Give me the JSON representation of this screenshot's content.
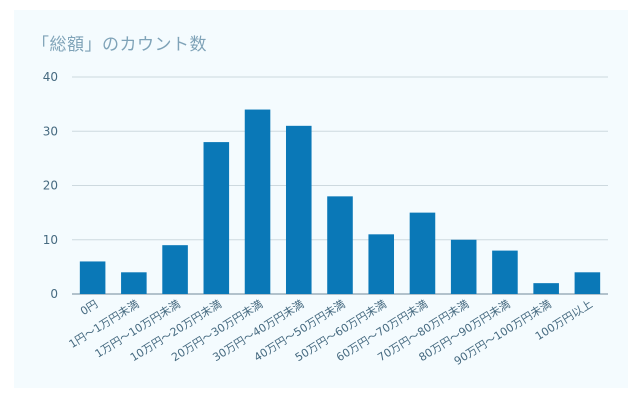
{
  "colors": {
    "background": "#f4fbfe",
    "bar": "#0a78b7",
    "title": "#7fa3b8",
    "axis_text": "#466a80",
    "grid": "#cdd9df",
    "axis_line": "#6f8a99"
  },
  "chart_data": {
    "type": "bar",
    "title": "「総額」のカウント数",
    "xlabel": "",
    "ylabel": "",
    "ylim": [
      0,
      40
    ],
    "yticks": [
      0,
      10,
      20,
      30,
      40
    ],
    "grid": true,
    "legend": "none",
    "categories": [
      "0円",
      "1円～1万円未満",
      "1万円～10万円未満",
      "10万円～20万円未満",
      "20万円～30万円未満",
      "30万円～40万円未満",
      "40万円～50万円未満",
      "50万円～60万円未満",
      "60万円～70万円未満",
      "70万円～80万円未満",
      "80万円～90万円未満",
      "90万円～100万円未満",
      "100万円以上"
    ],
    "values": [
      6,
      4,
      9,
      28,
      34,
      31,
      18,
      11,
      15,
      10,
      8,
      2,
      4
    ]
  }
}
